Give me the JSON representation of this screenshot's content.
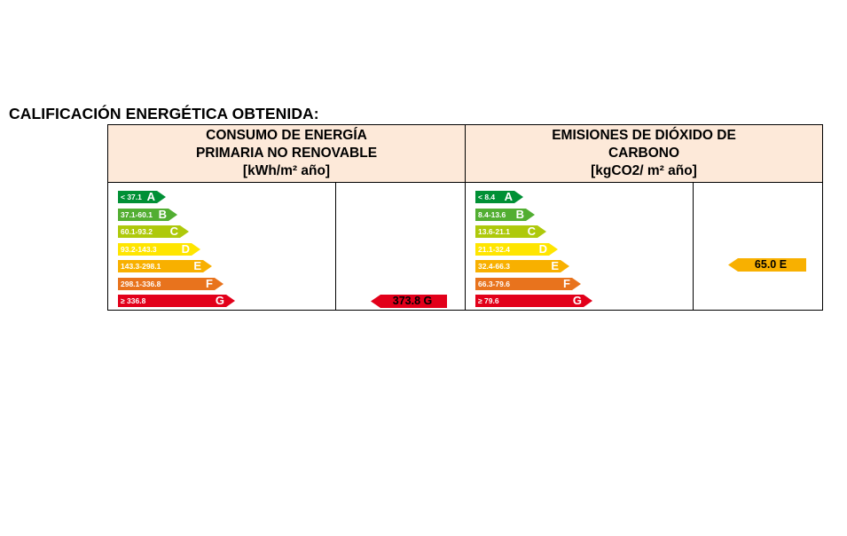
{
  "title": "CALIFICACIÓN ENERGÉTICA OBTENIDA:",
  "panels": [
    {
      "header": [
        "CONSUMO DE ENERGÍA",
        "PRIMARIA NO RENOVABLE",
        "[kWh/m² año]"
      ],
      "scale": [
        {
          "range": "< 37.1",
          "letter": "A",
          "color": "#009035"
        },
        {
          "range": "37.1-60.1",
          "letter": "B",
          "color": "#52ae32"
        },
        {
          "range": "60.1-93.2",
          "letter": "C",
          "color": "#aec90b"
        },
        {
          "range": "93.2-143.3",
          "letter": "D",
          "color": "#ffe500"
        },
        {
          "range": "143.3-298.1",
          "letter": "E",
          "color": "#f8b000"
        },
        {
          "range": "298.1-336.8",
          "letter": "F",
          "color": "#e8731d"
        },
        {
          "range": "≥ 336.8",
          "letter": "G",
          "color": "#e2001a"
        }
      ],
      "result": {
        "label": "373.8 G",
        "letter": "G",
        "value": 373.8
      }
    },
    {
      "header": [
        "EMISIONES DE DIÓXIDO DE",
        "CARBONO",
        "[kgCO2/ m² año]"
      ],
      "scale": [
        {
          "range": "< 8.4",
          "letter": "A",
          "color": "#009035"
        },
        {
          "range": "8.4-13.6",
          "letter": "B",
          "color": "#52ae32"
        },
        {
          "range": "13.6-21.1",
          "letter": "C",
          "color": "#aec90b"
        },
        {
          "range": "21.1-32.4",
          "letter": "D",
          "color": "#ffe500"
        },
        {
          "range": "32.4-66.3",
          "letter": "E",
          "color": "#f8b000"
        },
        {
          "range": "66.3-79.6",
          "letter": "F",
          "color": "#e8731d"
        },
        {
          "range": "≥ 79.6",
          "letter": "G",
          "color": "#e2001a"
        }
      ],
      "result": {
        "label": "65.0 E",
        "letter": "E",
        "value": 65.0
      }
    }
  ]
}
